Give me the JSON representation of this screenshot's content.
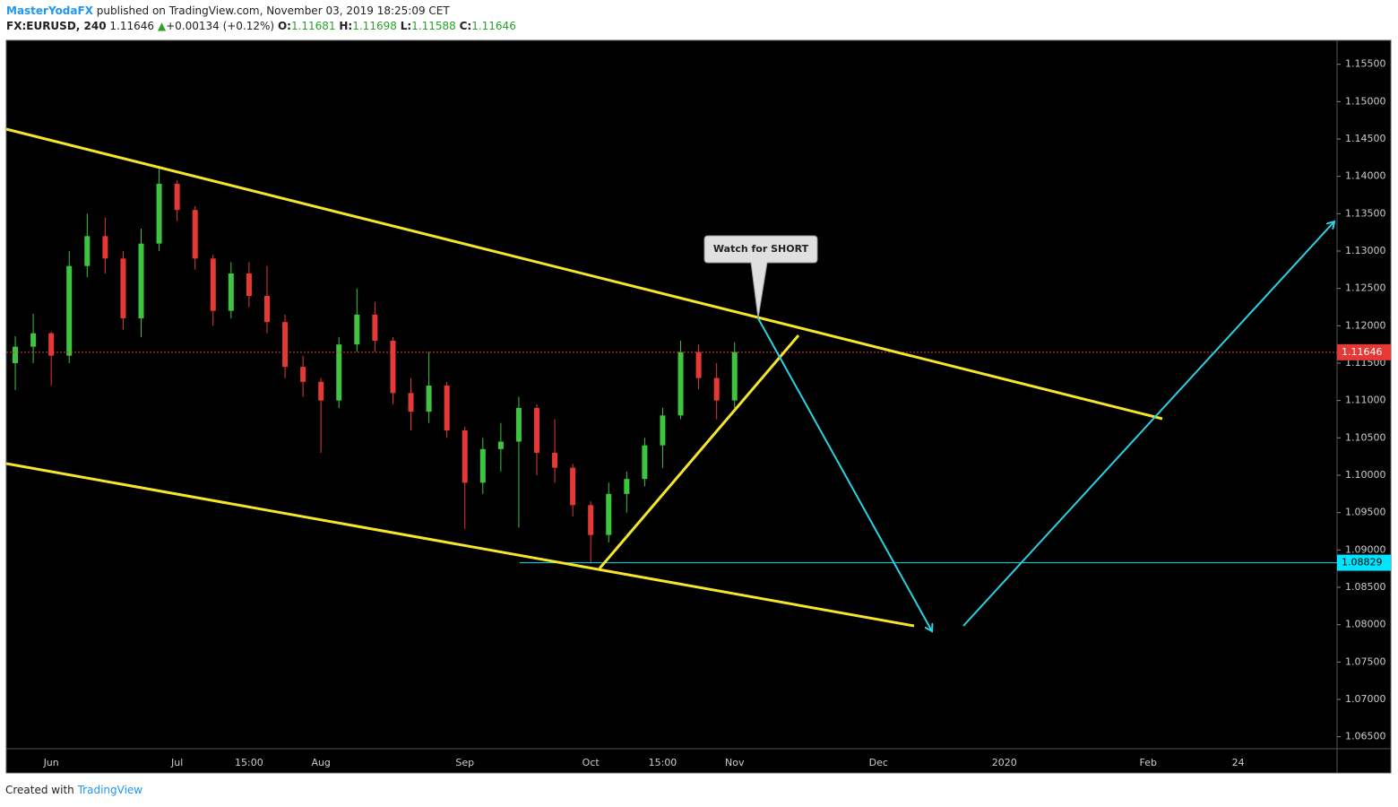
{
  "header": {
    "author": "MasterYodaFX",
    "published": "published on TradingView.com, November 03, 2019 18:25:09 CET",
    "symbol": "FX:EURUSD, 240",
    "last": "1.11646",
    "arrow": "▲",
    "change": "+0.00134 (+0.12%)",
    "open_label": "O:",
    "open": "1.11681",
    "high_label": "H:",
    "high": "1.11698",
    "low_label": "L:",
    "low": "1.11588",
    "close_label": "C:",
    "close": "1.11646"
  },
  "footer": {
    "created": "Created with",
    "brand": "TradingView"
  },
  "annotation": "Watch for SHORT",
  "chart_data": {
    "type": "candlestick",
    "up_color": "#3ec43e",
    "down_color": "#e53935",
    "ylim": [
      1.0634,
      1.1582
    ],
    "yticks": [
      {
        "value": 1.155,
        "label": "1.15500"
      },
      {
        "value": 1.15,
        "label": "1.15000"
      },
      {
        "value": 1.145,
        "label": "1.14500"
      },
      {
        "value": 1.14,
        "label": "1.14000"
      },
      {
        "value": 1.135,
        "label": "1.13500"
      },
      {
        "value": 1.13,
        "label": "1.13000"
      },
      {
        "value": 1.125,
        "label": "1.12500"
      },
      {
        "value": 1.12,
        "label": "1.12000"
      },
      {
        "value": 1.115,
        "label": "1.11500"
      },
      {
        "value": 1.11,
        "label": "1.11000"
      },
      {
        "value": 1.105,
        "label": "1.10500"
      },
      {
        "value": 1.1,
        "label": "1.10000"
      },
      {
        "value": 1.095,
        "label": "1.09500"
      },
      {
        "value": 1.09,
        "label": "1.09000"
      },
      {
        "value": 1.085,
        "label": "1.08500"
      },
      {
        "value": 1.08,
        "label": "1.08000"
      },
      {
        "value": 1.075,
        "label": "1.07500"
      },
      {
        "value": 1.07,
        "label": "1.07000"
      },
      {
        "value": 1.065,
        "label": "1.06500"
      }
    ],
    "price_lines": [
      {
        "value": 1.11646,
        "color": "#e53935"
      },
      {
        "value": 1.08829,
        "color": "#00e5ff"
      }
    ],
    "categories": [
      null,
      null,
      "Jun",
      null,
      null,
      null,
      null,
      null,
      null,
      "Jul",
      null,
      null,
      null,
      "15:00",
      null,
      null,
      null,
      "Aug",
      null,
      null,
      null,
      null,
      null,
      null,
      null,
      "Sep",
      null,
      null,
      null,
      null,
      null,
      null,
      "Oct",
      null,
      null,
      null,
      "15:00",
      null,
      null,
      null,
      "Nov",
      null,
      null,
      null,
      null,
      null,
      null,
      null,
      "Dec",
      null,
      null,
      null,
      null,
      null,
      null,
      "2020",
      null,
      null,
      null,
      null,
      null,
      null,
      null,
      "Feb",
      null,
      null,
      null,
      null,
      "24",
      null,
      null,
      null,
      null,
      null
    ],
    "open": [
      1.115,
      1.1172,
      1.119,
      1.116,
      1.128,
      1.132,
      1.129,
      1.121,
      1.131,
      1.139,
      1.1355,
      1.129,
      1.122,
      1.127,
      1.124,
      1.1205,
      1.1145,
      1.1125,
      1.11,
      1.1175,
      1.1215,
      1.118,
      1.111,
      1.1085,
      1.112,
      1.106,
      1.099,
      1.1035,
      1.1045,
      1.109,
      1.103,
      1.101,
      1.096,
      1.092,
      1.0975,
      1.0995,
      1.104,
      1.108,
      1.1165,
      1.113,
      1.11,
      null,
      null,
      null,
      null,
      null,
      null,
      null,
      null,
      null,
      null,
      null,
      null,
      null,
      null,
      null,
      null,
      null,
      null,
      null,
      null,
      null,
      null,
      null,
      null,
      null,
      null,
      null,
      null,
      null,
      null,
      null,
      null,
      null
    ],
    "high": [
      1.1186,
      1.1216,
      1.1192,
      1.13,
      1.135,
      1.1345,
      1.13,
      1.133,
      1.1414,
      1.1395,
      1.136,
      1.1295,
      1.1285,
      1.1285,
      1.128,
      1.1215,
      1.116,
      1.113,
      1.1185,
      1.125,
      1.1232,
      1.1185,
      1.113,
      1.1165,
      1.1125,
      1.1065,
      1.105,
      1.107,
      1.1105,
      1.1095,
      1.1075,
      1.1015,
      1.0965,
      1.099,
      1.1005,
      1.105,
      1.109,
      1.118,
      1.1175,
      1.115,
      1.1178,
      null,
      null,
      null,
      null,
      null,
      null,
      null,
      null,
      null,
      null,
      null,
      null,
      null,
      null,
      null,
      null,
      null,
      null,
      null,
      null,
      null,
      null,
      null,
      null,
      null,
      null,
      null,
      null,
      null,
      null,
      null,
      null,
      null
    ],
    "low": [
      1.1114,
      1.115,
      1.112,
      1.115,
      1.1265,
      1.127,
      1.1195,
      1.1185,
      1.13,
      1.134,
      1.1275,
      1.12,
      1.121,
      1.1225,
      1.119,
      1.113,
      1.1105,
      1.103,
      1.109,
      1.1165,
      1.1165,
      1.1095,
      1.106,
      1.107,
      1.105,
      1.0928,
      1.0975,
      1.1005,
      1.093,
      1.1,
      1.099,
      1.0945,
      1.0883,
      1.091,
      1.095,
      1.0985,
      1.101,
      1.1075,
      1.1115,
      1.1075,
      1.109,
      null,
      null,
      null,
      null,
      null,
      null,
      null,
      null,
      null,
      null,
      null,
      null,
      null,
      null,
      null,
      null,
      null,
      null,
      null,
      null,
      null,
      null,
      null,
      null,
      null,
      null,
      null,
      null,
      null,
      null,
      null,
      null,
      null
    ],
    "close": [
      1.1172,
      1.119,
      1.116,
      1.128,
      1.132,
      1.129,
      1.121,
      1.131,
      1.139,
      1.1355,
      1.129,
      1.122,
      1.127,
      1.124,
      1.1205,
      1.1145,
      1.1125,
      1.11,
      1.1175,
      1.1215,
      1.118,
      1.111,
      1.1085,
      1.112,
      1.106,
      1.099,
      1.1035,
      1.1045,
      1.109,
      1.103,
      1.101,
      1.096,
      1.092,
      1.0975,
      1.0995,
      1.104,
      1.108,
      1.1165,
      1.113,
      1.11,
      1.1165,
      null,
      null,
      null,
      null,
      null,
      null,
      null,
      null,
      null,
      null,
      null,
      null,
      null,
      null,
      null,
      null,
      null,
      null,
      null,
      null,
      null,
      null,
      null,
      null,
      null,
      null,
      null,
      null,
      null,
      null,
      null,
      null,
      null
    ]
  }
}
